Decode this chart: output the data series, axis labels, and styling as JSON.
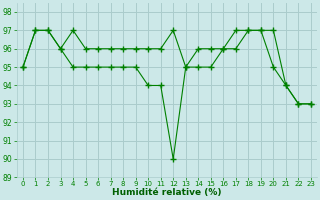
{
  "line1_x": [
    0,
    1,
    2,
    3,
    4,
    5,
    6,
    7,
    8,
    9,
    10,
    11,
    12,
    13,
    14,
    15,
    16,
    17,
    18,
    19,
    20,
    21,
    22,
    23
  ],
  "line1_y": [
    95,
    97,
    97,
    96,
    97,
    96,
    96,
    96,
    96,
    96,
    96,
    96,
    97,
    95,
    96,
    96,
    96,
    97,
    97,
    97,
    95,
    94,
    93,
    93
  ],
  "line2_x": [
    0,
    1,
    2,
    3,
    4,
    5,
    6,
    7,
    8,
    9,
    10,
    11,
    12,
    13,
    14,
    15,
    16,
    17,
    18,
    19,
    20,
    21,
    22,
    23
  ],
  "line2_y": [
    95,
    97,
    97,
    96,
    95,
    95,
    95,
    95,
    95,
    95,
    94,
    94,
    90,
    95,
    95,
    95,
    96,
    96,
    97,
    97,
    97,
    94,
    93,
    93
  ],
  "line_color": "#008000",
  "background_color": "#cce8e8",
  "grid_color": "#aacccc",
  "xlabel": "Humidité relative (%)",
  "xlabel_color": "#006000",
  "ylim": [
    89,
    98.5
  ],
  "xlim": [
    -0.5,
    23.5
  ],
  "yticks": [
    89,
    90,
    91,
    92,
    93,
    94,
    95,
    96,
    97,
    98
  ],
  "xticks": [
    0,
    1,
    2,
    3,
    4,
    5,
    6,
    7,
    8,
    9,
    10,
    11,
    12,
    13,
    14,
    15,
    16,
    17,
    18,
    19,
    20,
    21,
    22,
    23
  ],
  "xtick_labels": [
    "0",
    "1",
    "2",
    "3",
    "4",
    "5",
    "6",
    "7",
    "8",
    "9",
    "10",
    "11",
    "12",
    "13",
    "14",
    "15",
    "16",
    "17",
    "18",
    "19",
    "20",
    "21",
    "22",
    "23"
  ]
}
